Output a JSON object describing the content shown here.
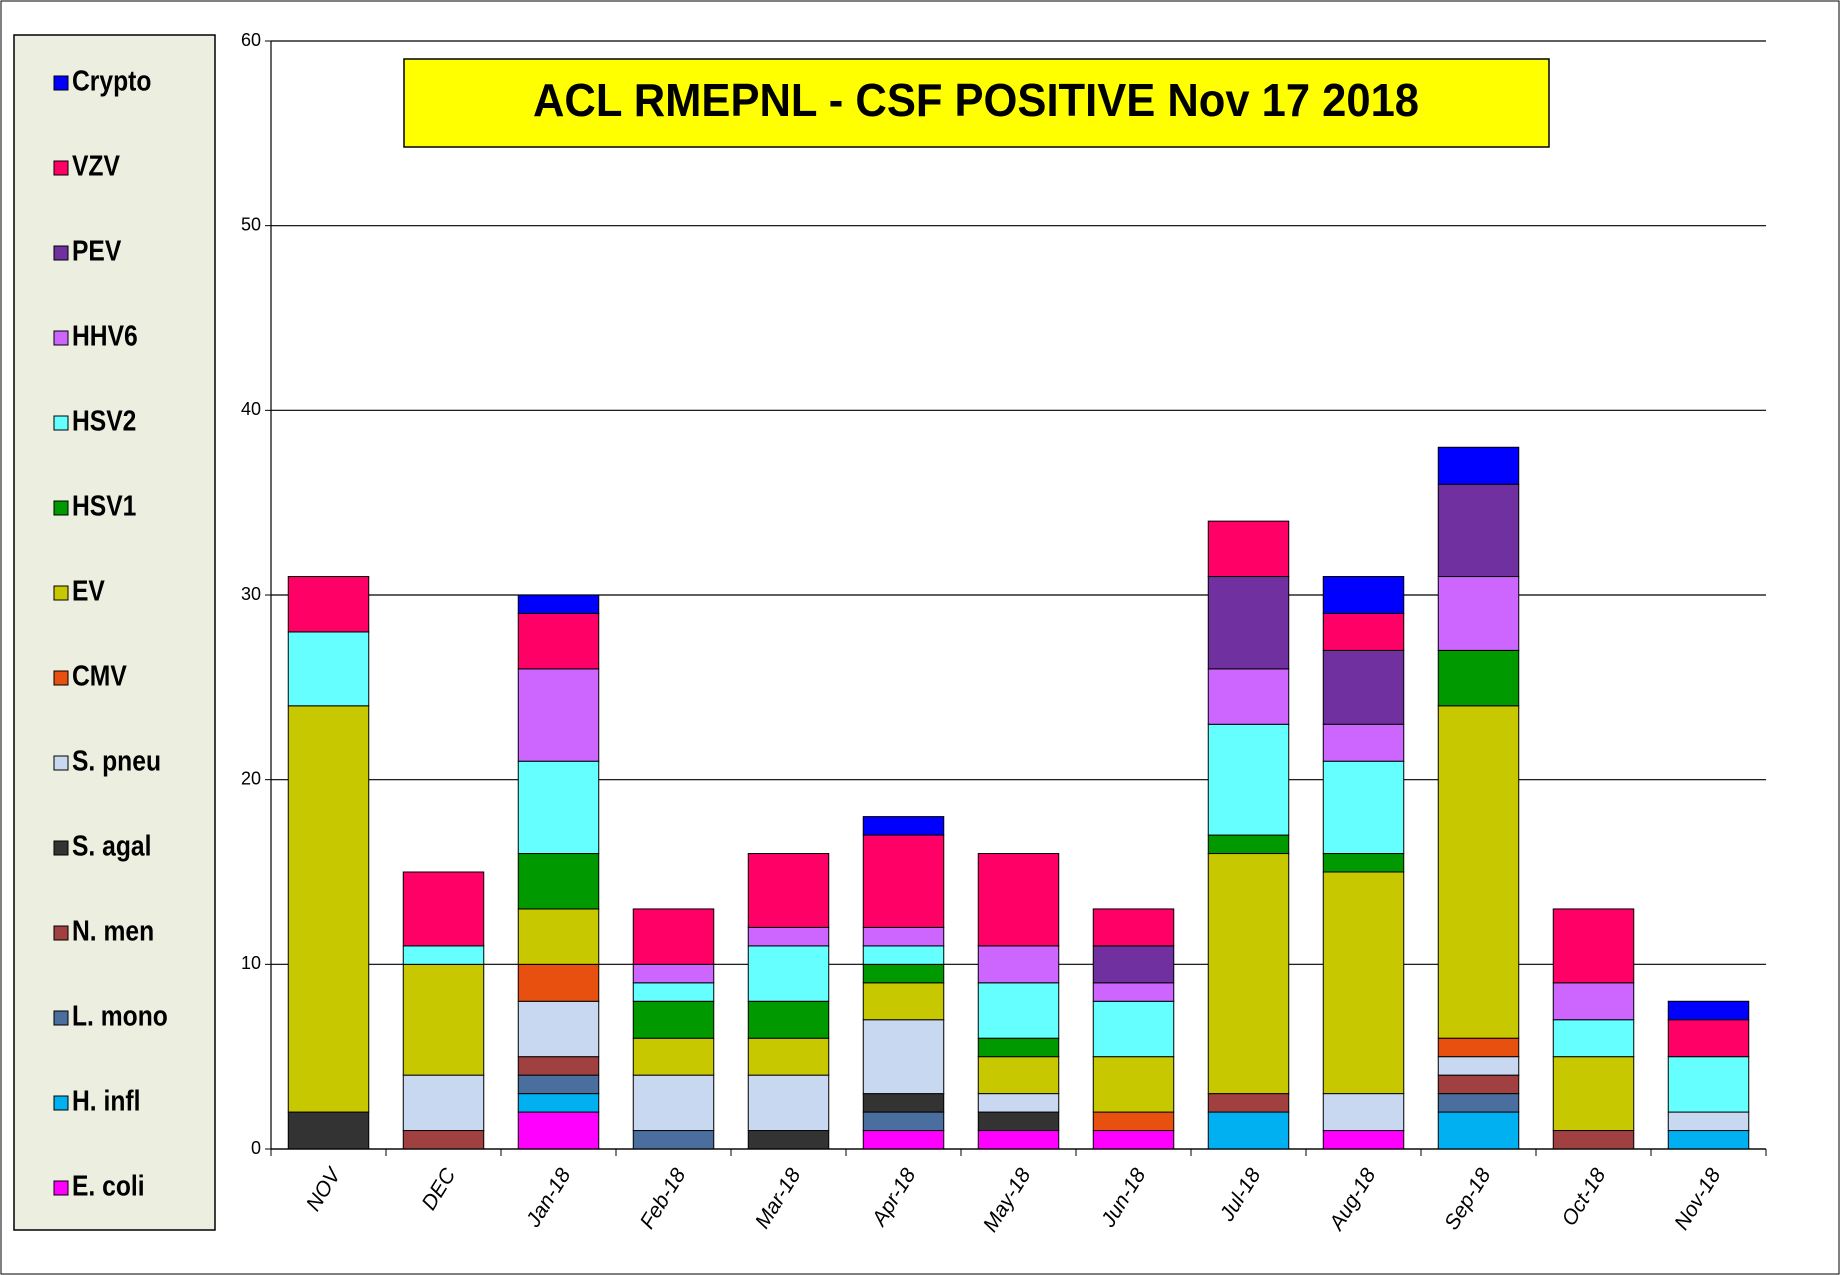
{
  "chart_data": {
    "type": "stacked_bar",
    "title": "ACL RMEPNL - CSF POSITIVE Nov 17 2018",
    "categories": [
      "NOV",
      "DEC",
      "Jan-18",
      "Feb-18",
      "Mar-18",
      "Apr-18",
      "May-18",
      "Jun-18",
      "Jul-18",
      "Aug-18",
      "Sep-18",
      "Oct-18",
      "Nov-18"
    ],
    "ylim": [
      0,
      60
    ],
    "yticks": [
      0,
      10,
      20,
      30,
      40,
      50,
      60
    ],
    "grid": true,
    "legend": "left",
    "series": [
      {
        "name": "E. coli",
        "color": "#ff00ff",
        "values": [
          0,
          0,
          2,
          0,
          0,
          1,
          1,
          1,
          0,
          1,
          0,
          0,
          0
        ]
      },
      {
        "name": "H. infl",
        "color": "#00b0f0",
        "values": [
          0,
          0,
          1,
          0,
          0,
          0,
          0,
          0,
          2,
          0,
          2,
          0,
          1
        ]
      },
      {
        "name": "L. mono",
        "color": "#4a6e9e",
        "values": [
          0,
          0,
          1,
          1,
          0,
          1,
          0,
          0,
          0,
          0,
          1,
          0,
          0
        ]
      },
      {
        "name": "N. men",
        "color": "#a04040",
        "values": [
          0,
          1,
          1,
          0,
          0,
          0,
          0,
          0,
          1,
          0,
          1,
          1,
          0
        ]
      },
      {
        "name": "S. agal",
        "color": "#333333",
        "values": [
          2,
          0,
          0,
          0,
          1,
          1,
          1,
          0,
          0,
          0,
          0,
          0,
          0
        ]
      },
      {
        "name": "S. pneu",
        "color": "#c8d8f0",
        "values": [
          0,
          3,
          3,
          3,
          3,
          4,
          1,
          0,
          0,
          2,
          1,
          0,
          1
        ]
      },
      {
        "name": "CMV",
        "color": "#e85010",
        "values": [
          0,
          0,
          2,
          0,
          0,
          0,
          0,
          1,
          0,
          0,
          1,
          0,
          0
        ]
      },
      {
        "name": "EV",
        "color": "#c8c800",
        "values": [
          22,
          6,
          3,
          2,
          2,
          2,
          2,
          3,
          13,
          12,
          18,
          4,
          0
        ]
      },
      {
        "name": "HSV1",
        "color": "#009900",
        "values": [
          0,
          0,
          3,
          2,
          2,
          1,
          1,
          0,
          1,
          1,
          3,
          0,
          0
        ]
      },
      {
        "name": "HSV2",
        "color": "#66ffff",
        "values": [
          4,
          1,
          5,
          1,
          3,
          1,
          3,
          3,
          6,
          5,
          0,
          2,
          3
        ]
      },
      {
        "name": "HHV6",
        "color": "#cc66ff",
        "values": [
          0,
          0,
          5,
          1,
          1,
          1,
          2,
          1,
          3,
          2,
          4,
          2,
          0
        ]
      },
      {
        "name": "PEV",
        "color": "#7030a0",
        "values": [
          0,
          0,
          0,
          0,
          0,
          0,
          0,
          2,
          5,
          4,
          5,
          0,
          0
        ]
      },
      {
        "name": "VZV",
        "color": "#ff0066",
        "values": [
          3,
          4,
          3,
          3,
          4,
          5,
          5,
          2,
          3,
          2,
          0,
          4,
          2
        ]
      },
      {
        "name": "Crypto",
        "color": "#0000ff",
        "values": [
          0,
          0,
          1,
          0,
          0,
          1,
          0,
          0,
          0,
          2,
          2,
          0,
          1
        ]
      }
    ]
  }
}
